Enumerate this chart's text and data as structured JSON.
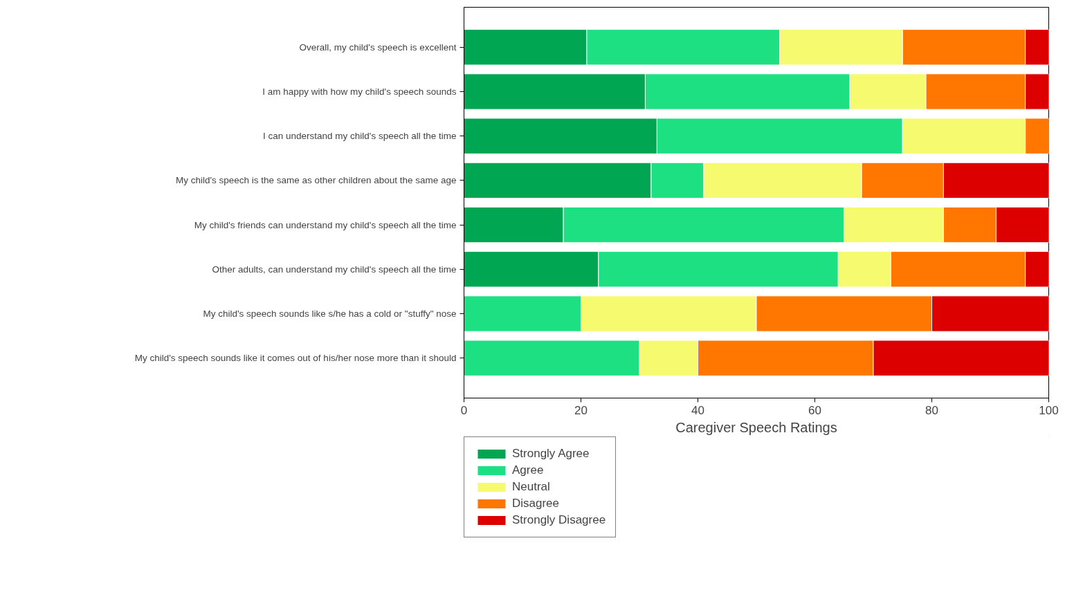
{
  "chart_data": {
    "type": "bar",
    "orientation": "horizontal",
    "stacked": true,
    "xlabel": "Caregiver Speech Ratings",
    "categories": [
      "Overall, my child's speech is excellent",
      "I am happy with how my child's speech sounds",
      "I can understand my child's speech all the time",
      "My child's speech is the same as other children about the same age",
      "My child's friends can understand my child's speech all the time",
      "Other adults, can understand my child's speech all the time",
      "My child's speech sounds like s/he has a cold or \"stuffy\" nose",
      "My child's speech sounds like it comes out of his/her nose more than it should"
    ],
    "series": [
      {
        "name": "Strongly Agree",
        "color": "#00a651",
        "values": [
          21,
          31,
          33,
          32,
          17,
          23,
          0,
          0
        ]
      },
      {
        "name": "Agree",
        "color": "#1de082",
        "values": [
          33,
          35,
          42,
          9,
          48,
          41,
          20,
          30
        ]
      },
      {
        "name": "Neutral",
        "color": "#f5fa6e",
        "values": [
          21,
          13,
          21,
          27,
          17,
          9,
          30,
          10
        ]
      },
      {
        "name": "Disagree",
        "color": "#ff7700",
        "values": [
          21,
          17,
          4,
          14,
          9,
          23,
          30,
          30
        ]
      },
      {
        "name": "Strongly Disagree",
        "color": "#dd0000",
        "values": [
          4,
          4,
          0,
          18,
          9,
          4,
          20,
          30
        ]
      }
    ],
    "xlim": [
      0,
      100
    ],
    "xticks": [
      0,
      20,
      40,
      60,
      80,
      100
    ],
    "grid": false,
    "legend": "bottom"
  }
}
